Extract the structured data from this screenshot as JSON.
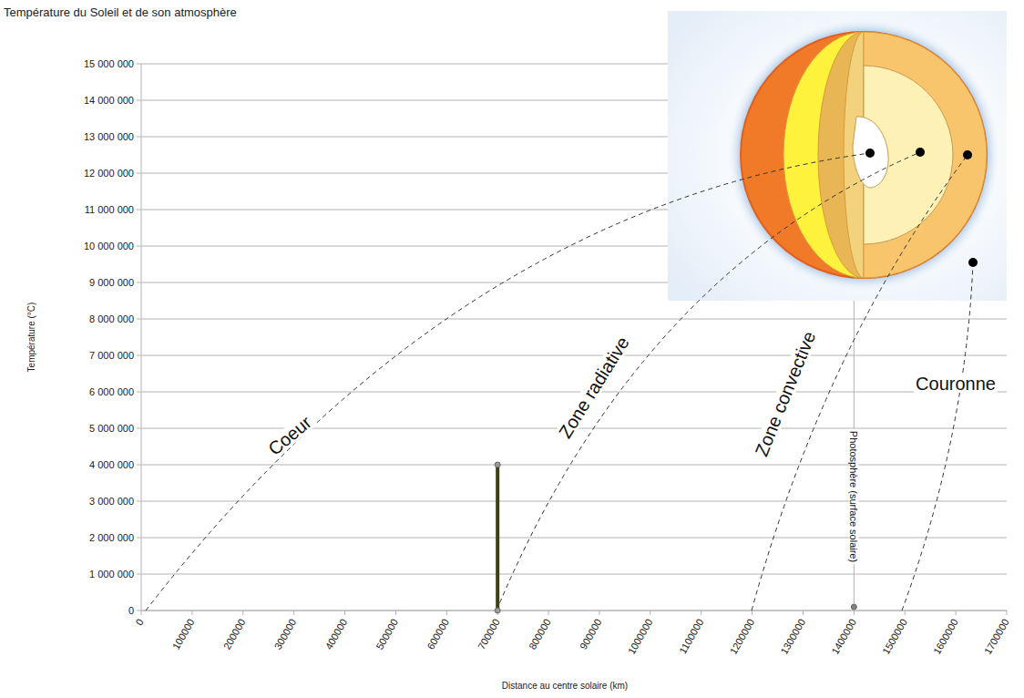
{
  "chart_data": {
    "type": "line",
    "title": "Température du Soleil et de son atmosphère",
    "x_label": "Distance au centre solaire (km)",
    "y_label": "Température (°C)",
    "xlim": [
      0,
      1700000
    ],
    "xticks": [
      0,
      100000,
      200000,
      300000,
      400000,
      500000,
      600000,
      700000,
      800000,
      900000,
      1000000,
      1100000,
      1200000,
      1300000,
      1400000,
      1500000,
      1600000,
      1700000
    ],
    "ylim": [
      0,
      15000000
    ],
    "yticks": [
      0,
      {
        "value": 1000000,
        "label": "1 000 000"
      },
      {
        "value": 2000000,
        "label": "2 000 000"
      },
      {
        "value": 3000000,
        "label": "3 000 000"
      },
      {
        "value": 4000000,
        "label": "4 000 000"
      },
      {
        "value": 5000000,
        "label": "5 000 000"
      },
      {
        "value": 6000000,
        "label": "6 000 000"
      },
      {
        "value": 7000000,
        "label": "7 000 000"
      },
      {
        "value": 8000000,
        "label": "8 000 000"
      },
      {
        "value": 9000000,
        "label": "9 000 000"
      },
      {
        "value": 10000000,
        "label": "10 000 000"
      },
      {
        "value": 11000000,
        "label": "11 000 000"
      },
      {
        "value": 12000000,
        "label": "12 000 000"
      },
      {
        "value": 13000000,
        "label": "13 000 000"
      },
      {
        "value": 14000000,
        "label": "14 000 000"
      },
      {
        "value": 15000000,
        "label": "15 000 000"
      }
    ],
    "grid": true,
    "series": [
      {
        "x": [
          700000,
          700000
        ],
        "values": [
          4000000,
          0
        ],
        "color": "#3f3f16",
        "marker": "circle"
      },
      {
        "type": "scatter",
        "x": [
          1400000
        ],
        "values": [
          100000
        ],
        "color": "#808080",
        "marker": "circle"
      }
    ],
    "zones": [
      "Coeur",
      "Zone radiative",
      "Zone convective",
      "Couronne"
    ],
    "photosphere": {
      "label": "Photosphère (surface solaire)",
      "x": 1400000
    }
  }
}
